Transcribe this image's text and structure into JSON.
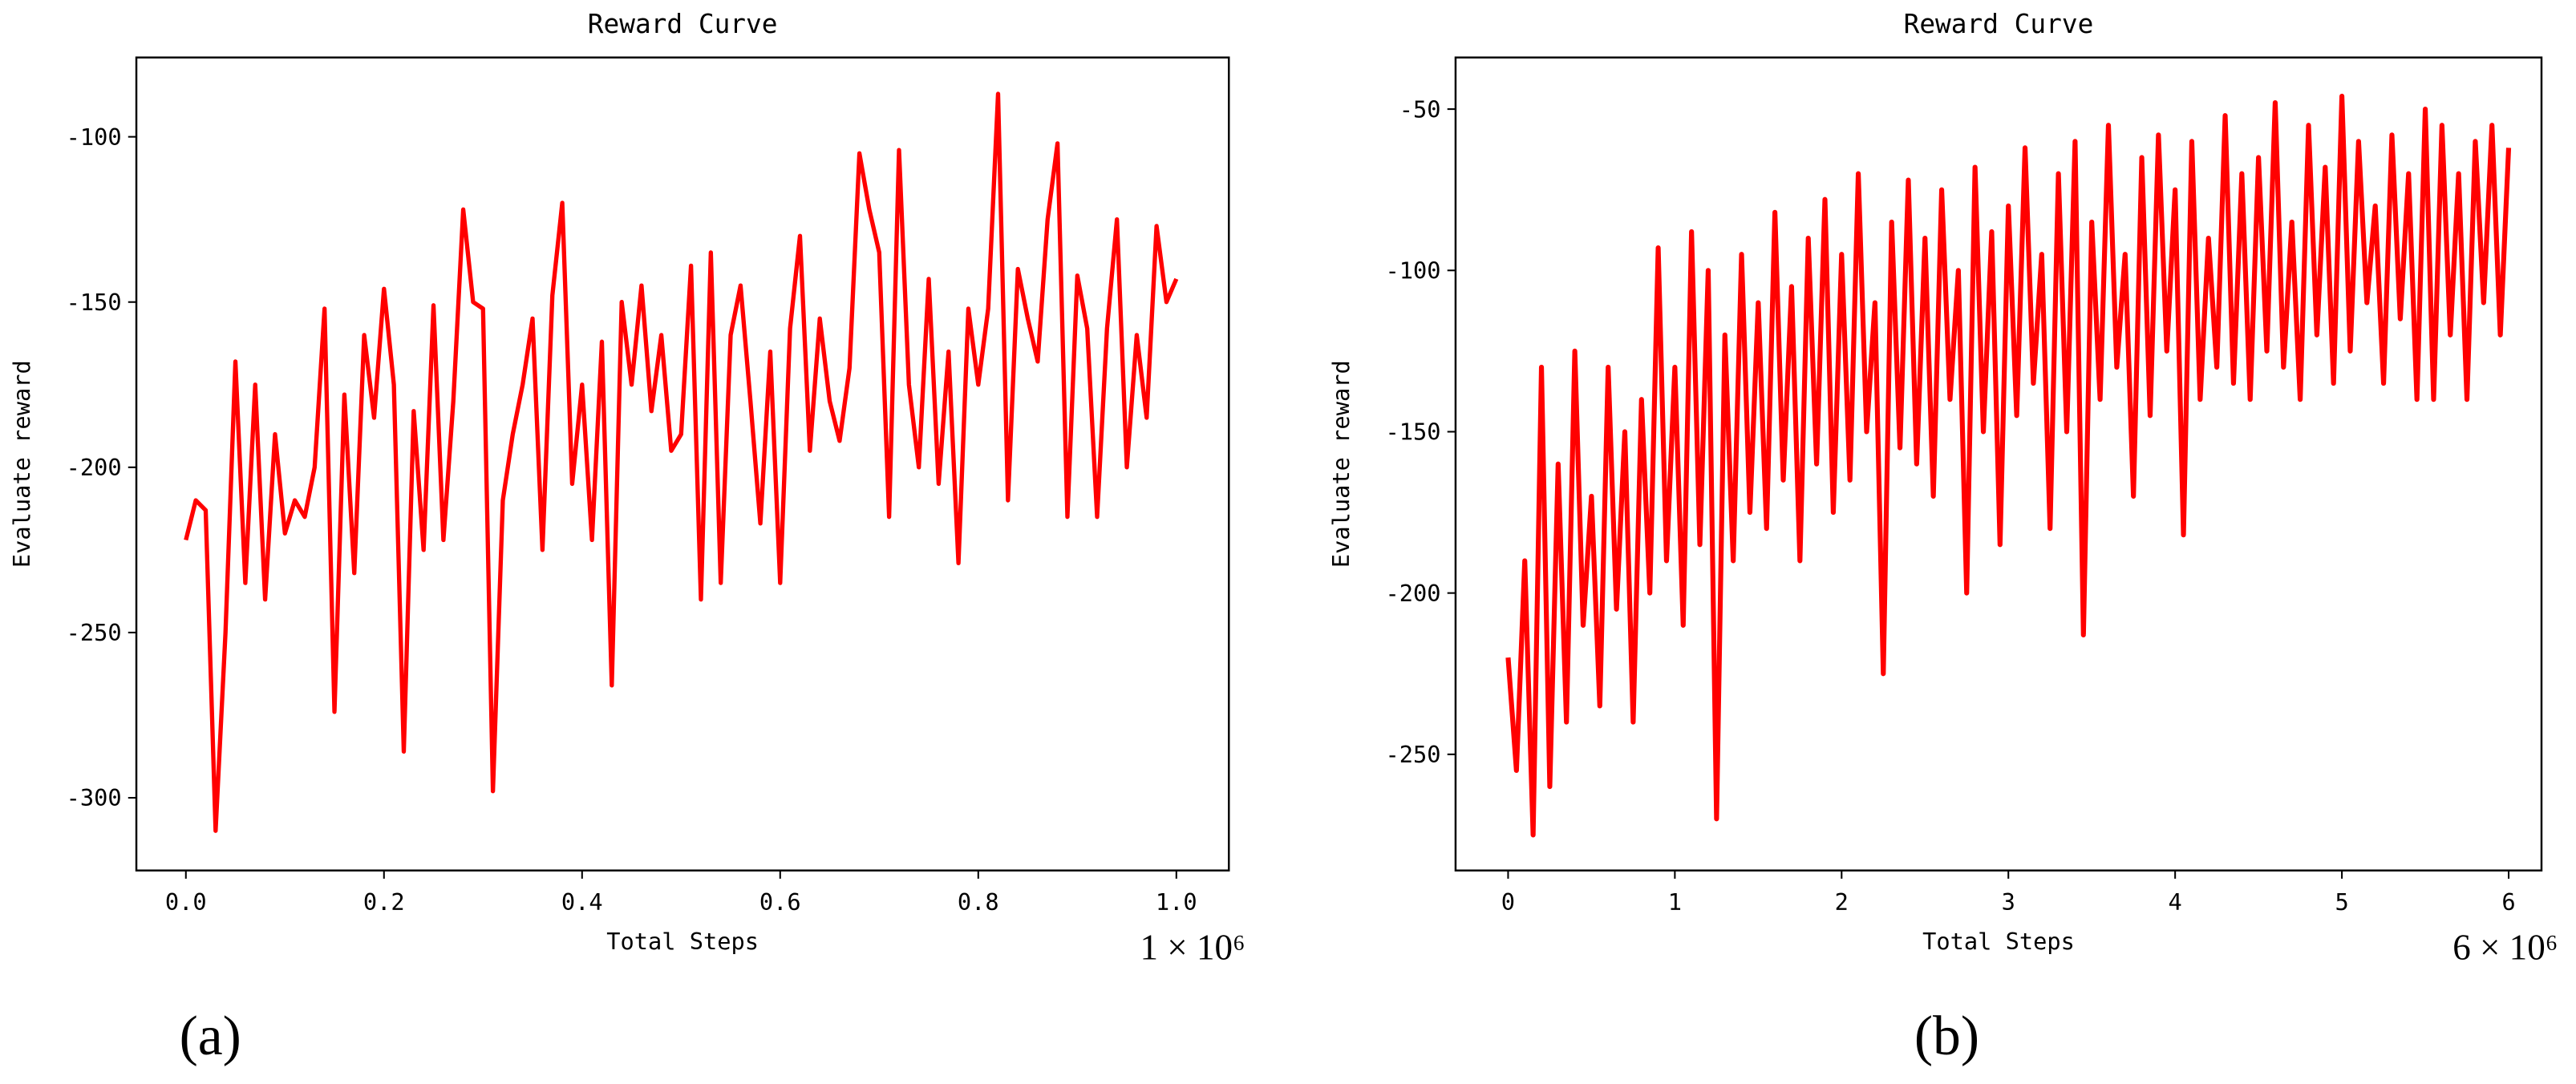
{
  "chart_data": [
    {
      "type": "line",
      "title": "Reward Curve",
      "x_label": "Total Steps",
      "y_label": "Evaluate reward",
      "x_offset_label": "1 × 10⁶",
      "panel_label": "(a)",
      "xlim": [
        -0.05,
        1.053
      ],
      "ylim": [
        -322,
        -76
      ],
      "xticks": [
        {
          "value": 0,
          "label": "0.0"
        },
        {
          "value": 0.2,
          "label": "0.2"
        },
        {
          "value": 0.4,
          "label": "0.4"
        },
        {
          "value": 0.6,
          "label": "0.6"
        },
        {
          "value": 0.8,
          "label": "0.8"
        },
        {
          "value": 1,
          "label": "1.0"
        }
      ],
      "yticks": [
        -100,
        -150,
        -200,
        -250,
        -300
      ],
      "x": [
        0,
        0.01,
        0.02,
        0.03,
        0.04,
        0.05,
        0.06,
        0.07,
        0.08,
        0.09,
        0.1,
        0.11,
        0.12,
        0.13,
        0.14,
        0.15,
        0.16,
        0.17,
        0.18,
        0.19,
        0.2,
        0.21,
        0.22,
        0.23,
        0.24,
        0.25,
        0.26,
        0.27,
        0.28,
        0.29,
        0.3,
        0.31,
        0.32,
        0.33,
        0.34,
        0.35,
        0.36,
        0.37,
        0.38,
        0.39,
        0.4,
        0.41,
        0.42,
        0.43,
        0.44,
        0.45,
        0.46,
        0.47,
        0.48,
        0.49,
        0.5,
        0.51,
        0.52,
        0.53,
        0.54,
        0.55,
        0.56,
        0.57,
        0.58,
        0.59,
        0.6,
        0.61,
        0.62,
        0.63,
        0.64,
        0.65,
        0.66,
        0.67,
        0.68,
        0.69,
        0.7,
        0.71,
        0.72,
        0.73,
        0.74,
        0.75,
        0.76,
        0.77,
        0.78,
        0.79,
        0.8,
        0.81,
        0.82,
        0.83,
        0.84,
        0.85,
        0.86,
        0.87,
        0.88,
        0.89,
        0.9,
        0.91,
        0.92,
        0.93,
        0.94,
        0.95,
        0.96,
        0.97,
        0.98,
        0.99,
        1
      ],
      "series": [
        {
          "color": "#ff0000",
          "values": [
            -222,
            -210,
            -213,
            -310,
            -250,
            -168,
            -235,
            -175,
            -240,
            -190,
            -220,
            -210,
            -215,
            -200,
            -152,
            -274,
            -178,
            -232,
            -160,
            -185,
            -146,
            -175,
            -286,
            -183,
            -225,
            -151,
            -222,
            -180,
            -122,
            -150,
            -152,
            -298,
            -210,
            -190,
            -175,
            -155,
            -225,
            -148,
            -120,
            -205,
            -175,
            -222,
            -162,
            -266,
            -150,
            -175,
            -145,
            -183,
            -160,
            -195,
            -190,
            -139,
            -240,
            -135,
            -235,
            -160,
            -145,
            -180,
            -217,
            -165,
            -235,
            -158,
            -130,
            -195,
            -155,
            -180,
            -192,
            -170,
            -105,
            -122,
            -135,
            -215,
            -104,
            -175,
            -200,
            -143,
            -205,
            -165,
            -229,
            -152,
            -175,
            -152,
            -87,
            -210,
            -140,
            -155,
            -168,
            -125,
            -102,
            -215,
            -142,
            -158,
            -215,
            -158,
            -125,
            -200,
            -160,
            -185,
            -127,
            -150,
            -143
          ]
        }
      ]
    },
    {
      "type": "line",
      "title": "Reward Curve",
      "x_label": "Total Steps",
      "y_label": "Evaluate reward",
      "x_offset_label": "6 × 10⁶",
      "panel_label": "(b)",
      "xlim": [
        -0.315,
        6.197
      ],
      "ylim": [
        -286,
        -34
      ],
      "xticks": [
        0,
        1,
        2,
        3,
        4,
        5,
        6
      ],
      "yticks": [
        -50,
        -100,
        -150,
        -200,
        -250
      ],
      "x": [
        0,
        0.05,
        0.1,
        0.15,
        0.2,
        0.25,
        0.3,
        0.35,
        0.4,
        0.45,
        0.5,
        0.55,
        0.6,
        0.65,
        0.7,
        0.75,
        0.8,
        0.85,
        0.9,
        0.95,
        1,
        1.05,
        1.1,
        1.15,
        1.2,
        1.25,
        1.3,
        1.35,
        1.4,
        1.45,
        1.5,
        1.55,
        1.6,
        1.65,
        1.7,
        1.75,
        1.8,
        1.85,
        1.9,
        1.95,
        2,
        2.05,
        2.1,
        2.15,
        2.2,
        2.25,
        2.3,
        2.35,
        2.4,
        2.45,
        2.5,
        2.55,
        2.6,
        2.65,
        2.7,
        2.75,
        2.8,
        2.85,
        2.9,
        2.95,
        3,
        3.05,
        3.1,
        3.15,
        3.2,
        3.25,
        3.3,
        3.35,
        3.4,
        3.45,
        3.5,
        3.55,
        3.6,
        3.65,
        3.7,
        3.75,
        3.8,
        3.85,
        3.9,
        3.95,
        4,
        4.05,
        4.1,
        4.15,
        4.2,
        4.25,
        4.3,
        4.35,
        4.4,
        4.45,
        4.5,
        4.55,
        4.6,
        4.65,
        4.7,
        4.75,
        4.8,
        4.85,
        4.9,
        4.95,
        5,
        5.05,
        5.1,
        5.15,
        5.2,
        5.25,
        5.3,
        5.35,
        5.4,
        5.45,
        5.5,
        5.55,
        5.6,
        5.65,
        5.7,
        5.75,
        5.8,
        5.85,
        5.9,
        5.95,
        6
      ],
      "series": [
        {
          "color": "#ff0000",
          "values": [
            -220,
            -255,
            -190,
            -275,
            -130,
            -260,
            -160,
            -240,
            -125,
            -210,
            -170,
            -235,
            -130,
            -205,
            -150,
            -240,
            -140,
            -200,
            -93,
            -190,
            -130,
            -210,
            -88,
            -185,
            -100,
            -270,
            -120,
            -190,
            -95,
            -175,
            -110,
            -180,
            -82,
            -165,
            -105,
            -190,
            -90,
            -160,
            -78,
            -175,
            -95,
            -165,
            -70,
            -150,
            -110,
            -225,
            -85,
            -155,
            -72,
            -160,
            -90,
            -170,
            -75,
            -140,
            -100,
            -200,
            -68,
            -150,
            -88,
            -185,
            -80,
            -145,
            -62,
            -135,
            -95,
            -180,
            -70,
            -150,
            -60,
            -213,
            -85,
            -140,
            -55,
            -130,
            -95,
            -170,
            -65,
            -145,
            -58,
            -125,
            -75,
            -182,
            -60,
            -140,
            -90,
            -130,
            -52,
            -135,
            -70,
            -140,
            -65,
            -125,
            -48,
            -130,
            -85,
            -140,
            -55,
            -120,
            -68,
            -135,
            -46,
            -125,
            -60,
            -110,
            -80,
            -135,
            -58,
            -115,
            -70,
            -140,
            -50,
            -140,
            -55,
            -120,
            -70,
            -140,
            -60,
            -110,
            -55,
            -120,
            -62
          ]
        }
      ]
    }
  ]
}
